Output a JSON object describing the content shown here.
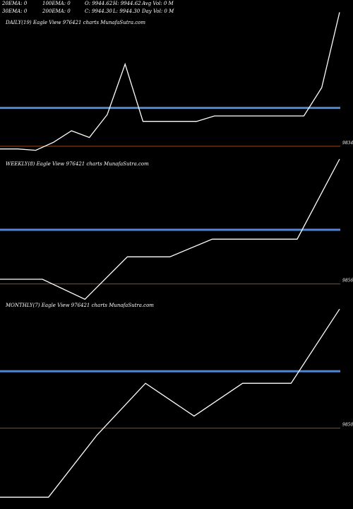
{
  "header": {
    "r1": [
      "20EMA: 0",
      "100EMA: 0",
      "O: 9944.62",
      "H: 9944.62",
      "Avg Vol: 0  M"
    ],
    "r2": [
      "30EMA: 0",
      "200EMA: 0",
      "C: 9944.30",
      "L: 9944.30",
      "Day Vol: 0  M"
    ]
  },
  "colors": {
    "background": "#000000",
    "price_line": "#ffffff",
    "ema_line": "#4f86d6",
    "ref_line": "#9a4a1a"
  },
  "chart_data": [
    {
      "type": "line",
      "title": "DAILY(19) Eagle  View  976421 charts MunafaSutra.com",
      "ref_label": "9834",
      "x": [
        1,
        2,
        3,
        4,
        5,
        6,
        7,
        8,
        9,
        10,
        11,
        12,
        13,
        14,
        15,
        16,
        17,
        18,
        19,
        20
      ],
      "series": [
        {
          "values": [
            29.5,
            29.5,
            29.3,
            30.5,
            32.2,
            31.2,
            34.6,
            42.1,
            33.6,
            33.6,
            33.6,
            33.6,
            34.4,
            34.4,
            34.4,
            34.4,
            34.4,
            34.4,
            38.6,
            49.8
          ]
        }
      ],
      "ema": 35.6,
      "ref": 29.9,
      "ylim": [
        28,
        49
      ]
    },
    {
      "type": "line",
      "title": "WEEKLY(8) Eagle  View  976421 charts MunafaSutra.com",
      "ref_label": "9856",
      "x": [
        1,
        2,
        3,
        4,
        5,
        6,
        7,
        8,
        9
      ],
      "series": [
        {
          "values": [
            56.8,
            56.8,
            55.1,
            58.7,
            58.7,
            60.2,
            60.2,
            60.2,
            67.0
          ]
        }
      ],
      "ema": 61.0,
      "ref": 56.4,
      "ylim": [
        55,
        67
      ]
    },
    {
      "type": "line",
      "title": "MONTHLY(7) Eagle  View  976421 charts MunafaSutra.com",
      "ref_label": "9850",
      "x": [
        1,
        2,
        3,
        4,
        5,
        6,
        7,
        8
      ],
      "series": [
        {
          "values": [
            43.6,
            43.6,
            47.2,
            50.2,
            48.3,
            50.2,
            50.2,
            54.5
          ]
        }
      ],
      "ema": 50.9,
      "ref": 47.6,
      "ylim": [
        43,
        55
      ]
    }
  ]
}
